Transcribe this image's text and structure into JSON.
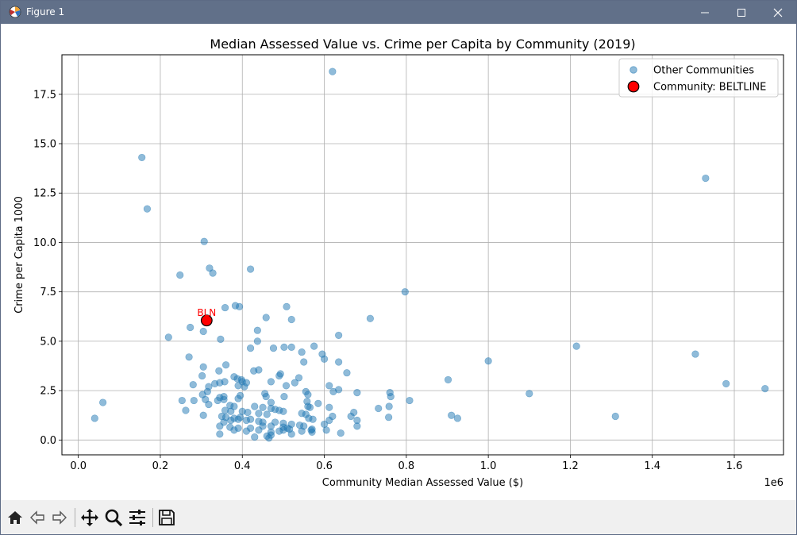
{
  "window": {
    "title": "Figure 1",
    "icon": "matplotlib-icon",
    "controls": [
      "minimize-icon",
      "maximize-icon",
      "close-icon"
    ]
  },
  "toolbar": {
    "buttons": [
      "home-icon",
      "back-icon",
      "forward-icon",
      "pan-icon",
      "zoom-icon",
      "configure-subplots-icon",
      "save-icon"
    ]
  },
  "chart_data": {
    "type": "scatter",
    "title": "Median Assessed Value vs. Crime per Capita by Community (2019)",
    "xlabel": "Community Median Assessed Value ($)",
    "ylabel": "Crime per Capita 1000",
    "x_offset_label": "1e6",
    "xlim": [
      -0.04,
      1.72
    ],
    "ylim": [
      -0.75,
      19.5
    ],
    "xticks": [
      0.0,
      0.2,
      0.4,
      0.6,
      0.8,
      1.0,
      1.2,
      1.4,
      1.6
    ],
    "xtick_labels": [
      "0.0",
      "0.2",
      "0.4",
      "0.6",
      "0.8",
      "1.0",
      "1.2",
      "1.4",
      "1.6"
    ],
    "yticks": [
      0.0,
      2.5,
      5.0,
      7.5,
      10.0,
      12.5,
      15.0,
      17.5
    ],
    "ytick_labels": [
      "0.0",
      "2.5",
      "5.0",
      "7.5",
      "10.0",
      "12.5",
      "15.0",
      "17.5"
    ],
    "grid": true,
    "legend_position": "top-right",
    "series": [
      {
        "name": "Other Communities",
        "color": "#1f77b4",
        "alpha": 0.5,
        "points": [
          [
            0.62,
            18.65
          ],
          [
            0.155,
            14.3
          ],
          [
            1.53,
            13.25
          ],
          [
            0.168,
            11.7
          ],
          [
            0.307,
            10.05
          ],
          [
            0.32,
            8.7
          ],
          [
            0.42,
            8.65
          ],
          [
            0.328,
            8.45
          ],
          [
            0.248,
            8.35
          ],
          [
            0.797,
            7.5
          ],
          [
            0.383,
            6.8
          ],
          [
            0.393,
            6.75
          ],
          [
            0.358,
            6.7
          ],
          [
            0.508,
            6.75
          ],
          [
            0.458,
            6.2
          ],
          [
            0.712,
            6.15
          ],
          [
            0.52,
            6.1
          ],
          [
            0.273,
            5.7
          ],
          [
            0.305,
            5.5
          ],
          [
            0.437,
            5.55
          ],
          [
            0.22,
            5.2
          ],
          [
            0.635,
            5.3
          ],
          [
            0.347,
            5.1
          ],
          [
            0.437,
            5.0
          ],
          [
            0.575,
            4.75
          ],
          [
            0.52,
            4.7
          ],
          [
            0.502,
            4.7
          ],
          [
            0.476,
            4.65
          ],
          [
            0.42,
            4.65
          ],
          [
            1.215,
            4.75
          ],
          [
            0.545,
            4.45
          ],
          [
            0.595,
            4.35
          ],
          [
            1.505,
            4.35
          ],
          [
            0.27,
            4.2
          ],
          [
            0.6,
            4.1
          ],
          [
            0.55,
            3.95
          ],
          [
            0.635,
            3.95
          ],
          [
            1.0,
            4.0
          ],
          [
            0.305,
            3.7
          ],
          [
            0.36,
            3.8
          ],
          [
            0.343,
            3.5
          ],
          [
            0.428,
            3.5
          ],
          [
            0.44,
            3.55
          ],
          [
            0.493,
            3.35
          ],
          [
            0.49,
            3.25
          ],
          [
            0.655,
            3.4
          ],
          [
            0.538,
            3.15
          ],
          [
            0.302,
            3.25
          ],
          [
            0.38,
            3.2
          ],
          [
            0.388,
            3.1
          ],
          [
            0.398,
            3.05
          ],
          [
            0.4,
            2.95
          ],
          [
            0.41,
            2.9
          ],
          [
            0.47,
            2.95
          ],
          [
            0.528,
            2.9
          ],
          [
            0.357,
            2.95
          ],
          [
            0.333,
            2.85
          ],
          [
            0.345,
            2.9
          ],
          [
            0.902,
            3.05
          ],
          [
            0.28,
            2.8
          ],
          [
            0.39,
            2.75
          ],
          [
            0.405,
            2.7
          ],
          [
            0.318,
            2.7
          ],
          [
            0.507,
            2.75
          ],
          [
            0.612,
            2.75
          ],
          [
            0.635,
            2.55
          ],
          [
            0.622,
            2.45
          ],
          [
            0.68,
            2.4
          ],
          [
            0.76,
            2.4
          ],
          [
            0.762,
            2.2
          ],
          [
            1.1,
            2.35
          ],
          [
            1.58,
            2.85
          ],
          [
            1.675,
            2.6
          ],
          [
            0.455,
            2.35
          ],
          [
            0.458,
            2.2
          ],
          [
            0.555,
            2.45
          ],
          [
            0.56,
            2.3
          ],
          [
            0.502,
            2.2
          ],
          [
            0.303,
            2.3
          ],
          [
            0.315,
            2.45
          ],
          [
            0.345,
            2.15
          ],
          [
            0.355,
            2.2
          ],
          [
            0.34,
            2.0
          ],
          [
            0.355,
            2.05
          ],
          [
            0.39,
            2.1
          ],
          [
            0.395,
            2.25
          ],
          [
            0.31,
            2.05
          ],
          [
            0.282,
            2.0
          ],
          [
            0.253,
            2.0
          ],
          [
            0.06,
            1.9
          ],
          [
            0.808,
            2.0
          ],
          [
            0.558,
            1.95
          ],
          [
            0.585,
            1.85
          ],
          [
            0.47,
            1.9
          ],
          [
            0.318,
            1.8
          ],
          [
            0.37,
            1.75
          ],
          [
            0.38,
            1.7
          ],
          [
            0.43,
            1.7
          ],
          [
            0.45,
            1.65
          ],
          [
            0.47,
            1.6
          ],
          [
            0.48,
            1.55
          ],
          [
            0.49,
            1.5
          ],
          [
            0.56,
            1.7
          ],
          [
            0.565,
            1.65
          ],
          [
            0.612,
            1.65
          ],
          [
            0.758,
            1.7
          ],
          [
            0.732,
            1.6
          ],
          [
            0.262,
            1.5
          ],
          [
            0.358,
            1.5
          ],
          [
            0.372,
            1.45
          ],
          [
            0.4,
            1.45
          ],
          [
            0.413,
            1.4
          ],
          [
            0.44,
            1.35
          ],
          [
            0.46,
            1.3
          ],
          [
            0.5,
            1.45
          ],
          [
            0.545,
            1.35
          ],
          [
            0.555,
            1.3
          ],
          [
            0.562,
            1.1
          ],
          [
            0.572,
            1.05
          ],
          [
            0.62,
            1.2
          ],
          [
            0.665,
            1.2
          ],
          [
            0.672,
            1.4
          ],
          [
            0.68,
            1.0
          ],
          [
            0.757,
            1.15
          ],
          [
            0.91,
            1.25
          ],
          [
            0.925,
            1.1
          ],
          [
            1.31,
            1.2
          ],
          [
            0.04,
            1.1
          ],
          [
            0.305,
            1.25
          ],
          [
            0.35,
            1.2
          ],
          [
            0.36,
            1.15
          ],
          [
            0.38,
            1.1
          ],
          [
            0.39,
            1.05
          ],
          [
            0.41,
            1.0
          ],
          [
            0.42,
            1.05
          ],
          [
            0.44,
            0.95
          ],
          [
            0.45,
            0.9
          ],
          [
            0.48,
            0.9
          ],
          [
            0.5,
            0.85
          ],
          [
            0.52,
            0.8
          ],
          [
            0.54,
            0.75
          ],
          [
            0.6,
            0.8
          ],
          [
            0.612,
            1.0
          ],
          [
            0.68,
            0.7
          ],
          [
            0.345,
            0.7
          ],
          [
            0.37,
            0.65
          ],
          [
            0.39,
            0.6
          ],
          [
            0.42,
            0.6
          ],
          [
            0.47,
            0.7
          ],
          [
            0.5,
            0.65
          ],
          [
            0.51,
            0.6
          ],
          [
            0.55,
            0.7
          ],
          [
            0.57,
            0.55
          ],
          [
            0.345,
            0.3
          ],
          [
            0.38,
            0.5
          ],
          [
            0.41,
            0.45
          ],
          [
            0.44,
            0.5
          ],
          [
            0.47,
            0.4
          ],
          [
            0.49,
            0.45
          ],
          [
            0.5,
            0.5
          ],
          [
            0.515,
            0.55
          ],
          [
            0.545,
            0.45
          ],
          [
            0.57,
            0.4
          ],
          [
            0.605,
            0.5
          ],
          [
            0.64,
            0.35
          ],
          [
            0.43,
            0.15
          ],
          [
            0.46,
            0.2
          ],
          [
            0.47,
            0.25
          ],
          [
            0.52,
            0.3
          ],
          [
            0.465,
            0.1
          ],
          [
            0.568,
            0.5
          ],
          [
            0.355,
            0.9
          ],
          [
            0.372,
            1.0
          ],
          [
            0.45,
            0.7
          ],
          [
            0.395,
            1.15
          ]
        ]
      },
      {
        "name": "Community: BELTLINE",
        "color": "#ff0000",
        "edge_color": "#000000",
        "points": [
          [
            0.313,
            6.05
          ]
        ],
        "annotation": "BLN"
      }
    ]
  }
}
